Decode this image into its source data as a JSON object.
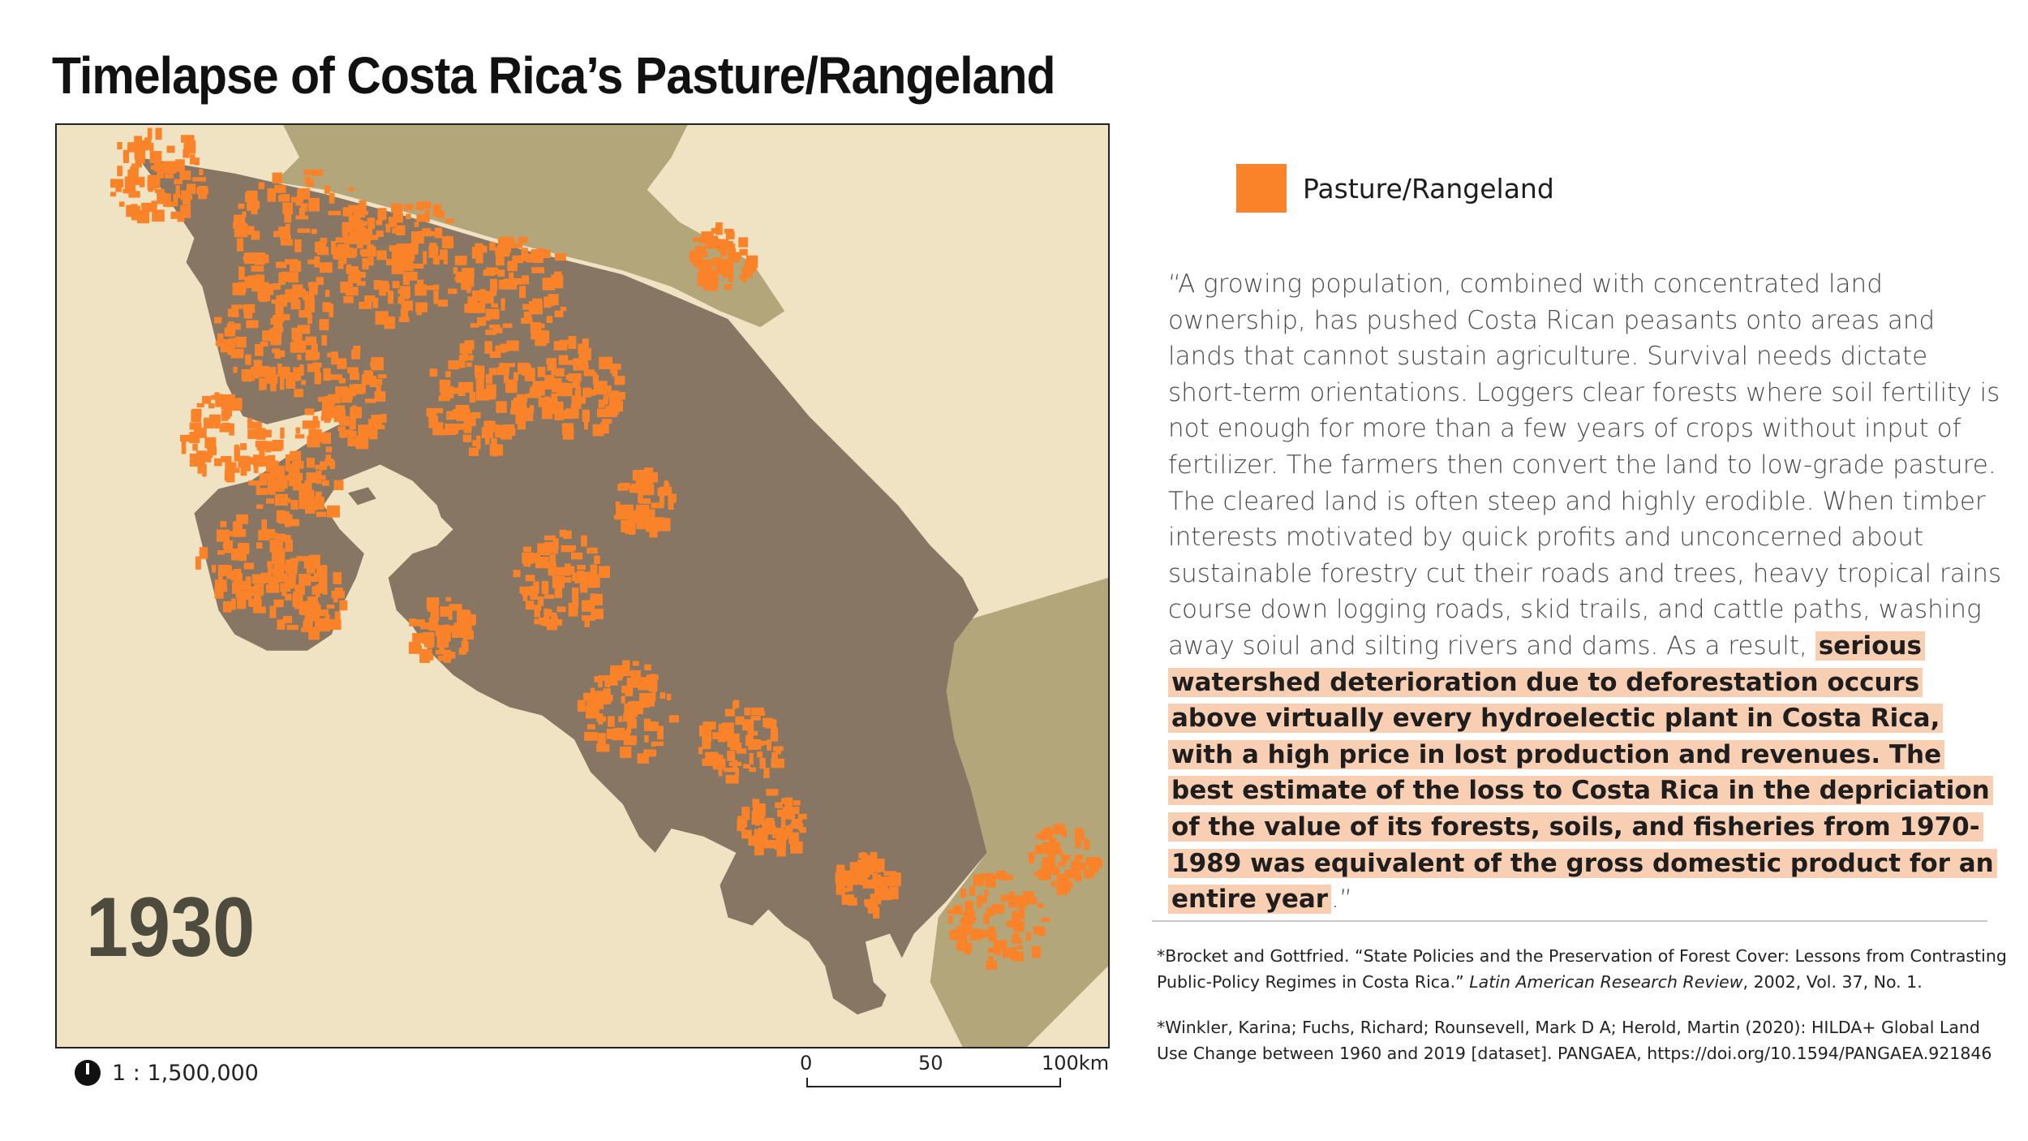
{
  "title": "Timelapse of Costa Rica’s Pasture/Rangeland",
  "map": {
    "year_label": "1930",
    "scale_ratio": "1 : 1,500,000",
    "scale_bar": {
      "labels": [
        "0",
        "50",
        "100km"
      ]
    },
    "colors": {
      "ocean": "#f0e3c3",
      "land": "#867663",
      "neighbor_land": "#b3a67a",
      "pasture": "#fa8329"
    }
  },
  "legend": {
    "label": "Pasture/Rangeland",
    "color": "#fa8329"
  },
  "quote": {
    "text_plain": "“A growing population, combined with concentrated land ownership, has pushed Costa Rican peasants onto areas and lands that cannot sustain agriculture.  Survival needs dictate short-term orientations.  Loggers clear forests where soil fertility is not enough for more than a few years of crops without input of fertilizer.  The farmers then convert the land to low-grade pasture. The cleared land is often steep and highly erodible.  When timber interests motivated by quick profits and unconcerned about sustainable forestry cut their roads and trees, heavy tropical rains course down logging roads, skid trails, and cattle paths, washing away soiul and silting rivers and dams.  As a result, ",
    "text_highlight": "serious  watershed deterioration due to deforestation occurs above virtually every hydroelectic plant in Costa Rica, with a high price in lost production and revenues.  The best estimate of the loss to Costa Rica in the depriciation of the value of its forests, soils, and fisheries from 1970-1989 was equivalent of the gross domestic product for an entire year",
    "text_end": ".”"
  },
  "references": [
    {
      "prefix": "*Brocket and Gottfried. “State Policies and the Preservation of Forest Cover: Lessons from Contrasting Public-Policy Regimes in Costa Rica.” ",
      "journal": "Latin American Research Review",
      "suffix": ", 2002, Vol. 37, No. 1."
    },
    {
      "text": "*Winkler, Karina; Fuchs, Richard; Rounsevell, Mark D A; Herold, Martin (2020): HILDA+ Global Land Use Change between 1960 and 2019 [dataset]. PANGAEA, https://doi.org/10.1594/PANGAEA.921846"
    }
  ]
}
